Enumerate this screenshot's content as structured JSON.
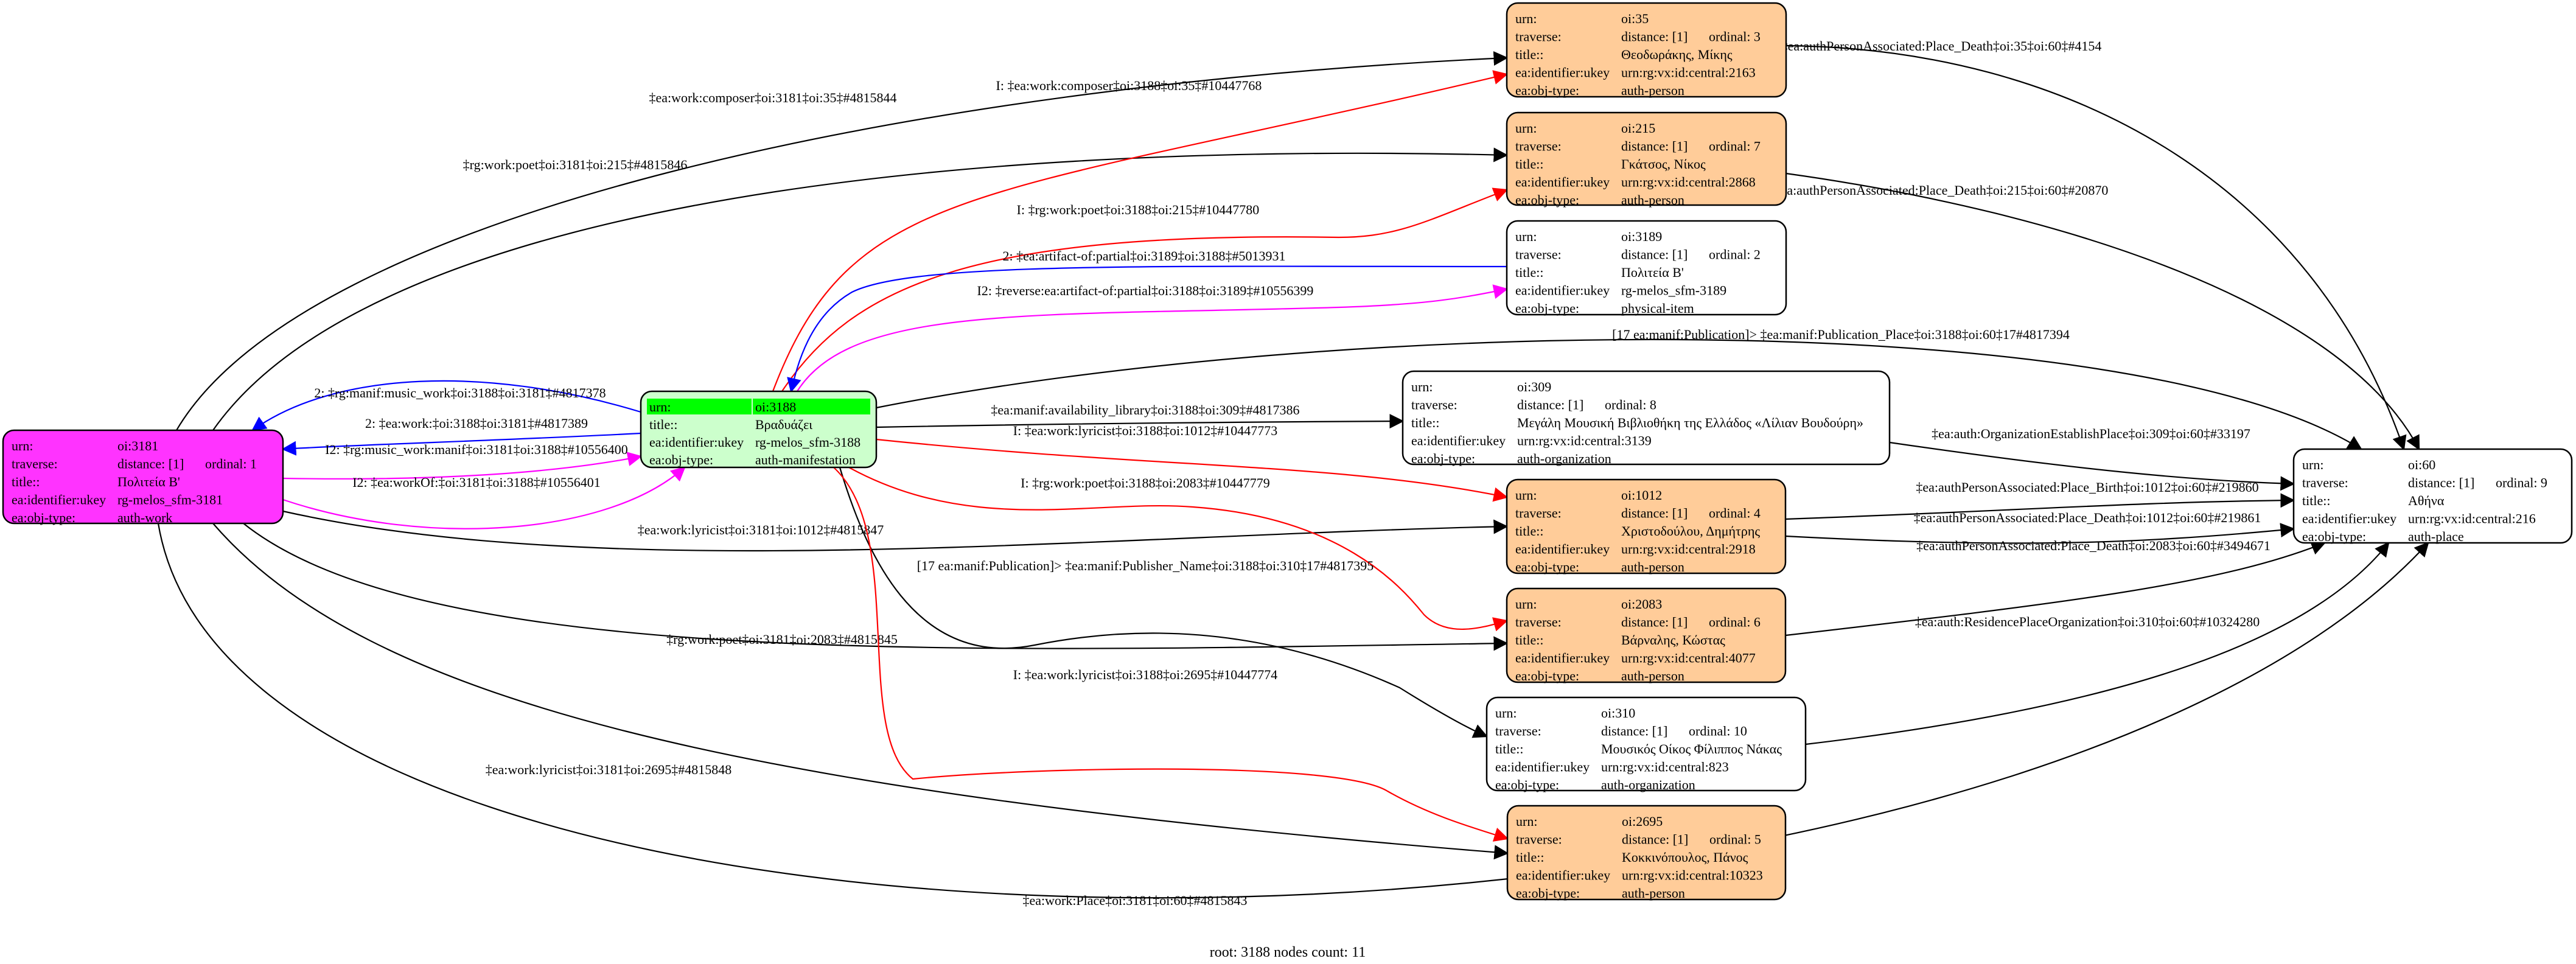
{
  "row_labels": {
    "urn": "urn:",
    "traverse": "traverse:",
    "title": "title::",
    "ukey": "ea:identifier:ukey",
    "obj_type": "ea:obj-type:"
  },
  "colors": {
    "work": "#ff33ff",
    "root": "#ccffcc",
    "root_header": "#00ff00",
    "person": "#ffcc99",
    "plain": "#ffffff",
    "red": "#ff0000",
    "blue": "#0000ff",
    "magenta": "#ff00ff",
    "black": "#000000"
  },
  "nodes": [
    {
      "id": "3181",
      "style": "work",
      "urn": "oi:3181",
      "distance": "distance: [1]",
      "ordinal": "ordinal: 1",
      "title": "Πολιτεία Β'",
      "ukey": "rg-melos_sfm-3181",
      "obj_type": "auth-work"
    },
    {
      "id": "3188",
      "style": "root",
      "urn": "oi:3188",
      "title": "Βραδυάζει",
      "ukey": "rg-melos_sfm-3188",
      "obj_type": "auth-manifestation"
    },
    {
      "id": "35",
      "style": "person",
      "urn": "oi:35",
      "distance": "distance: [1]",
      "ordinal": "ordinal: 3",
      "title": "Θεοδωράκης, Μίκης",
      "ukey": "urn:rg:vx:id:central:2163",
      "obj_type": "auth-person"
    },
    {
      "id": "215",
      "style": "person",
      "urn": "oi:215",
      "distance": "distance: [1]",
      "ordinal": "ordinal: 7",
      "title": "Γκάτσος, Νίκος",
      "ukey": "urn:rg:vx:id:central:2868",
      "obj_type": "auth-person"
    },
    {
      "id": "3189",
      "style": "plain",
      "urn": "oi:3189",
      "distance": "distance: [1]",
      "ordinal": "ordinal: 2",
      "title": "Πολιτεία Β'",
      "ukey": "rg-melos_sfm-3189",
      "obj_type": "physical-item"
    },
    {
      "id": "309",
      "style": "plain",
      "urn": "oi:309",
      "distance": "distance: [1]",
      "ordinal": "ordinal: 8",
      "title": "Μεγάλη Μουσική Βιβλιοθήκη της Ελλάδος «Λίλιαν Βουδούρη»",
      "ukey": "urn:rg:vx:id:central:3139",
      "obj_type": "auth-organization"
    },
    {
      "id": "1012",
      "style": "person",
      "urn": "oi:1012",
      "distance": "distance: [1]",
      "ordinal": "ordinal: 4",
      "title": "Χριστοδούλου, Δημήτρης",
      "ukey": "urn:rg:vx:id:central:2918",
      "obj_type": "auth-person"
    },
    {
      "id": "2083",
      "style": "person",
      "urn": "oi:2083",
      "distance": "distance: [1]",
      "ordinal": "ordinal: 6",
      "title": "Βάρναλης, Κώστας",
      "ukey": "urn:rg:vx:id:central:4077",
      "obj_type": "auth-person"
    },
    {
      "id": "310",
      "style": "plain",
      "urn": "oi:310",
      "distance": "distance: [1]",
      "ordinal": "ordinal: 10",
      "title": "Μουσικός Οίκος Φίλιππος Νάκας",
      "ukey": "urn:rg:vx:id:central:823",
      "obj_type": "auth-organization"
    },
    {
      "id": "2695",
      "style": "person",
      "urn": "oi:2695",
      "distance": "distance: [1]",
      "ordinal": "ordinal: 5",
      "title": "Κοκκινόπουλος, Πάνος",
      "ukey": "urn:rg:vx:id:central:10323",
      "obj_type": "auth-person"
    },
    {
      "id": "60",
      "style": "plain",
      "urn": "oi:60",
      "distance": "distance: [1]",
      "ordinal": "ordinal: 9",
      "title": "Αθήνα",
      "ukey": "urn:rg:vx:id:central:216",
      "obj_type": "auth-place"
    }
  ],
  "edges": [
    {
      "from": "3181",
      "to": "35",
      "color": "black",
      "label": "‡ea:work:composer‡oi:3181‡oi:35‡#4815844"
    },
    {
      "from": "3181",
      "to": "215",
      "color": "black",
      "label": "‡rg:work:poet‡oi:3181‡oi:215‡#4815846"
    },
    {
      "from": "3188",
      "to": "3181",
      "color": "blue",
      "label": "2: ‡rg:manif:music_work‡oi:3188‡oi:3181‡#4817378"
    },
    {
      "from": "3188",
      "to": "3181",
      "color": "blue",
      "label": "2: ‡ea:work:‡oi:3188‡oi:3181‡#4817389"
    },
    {
      "from": "3181",
      "to": "3188",
      "color": "magenta",
      "label": "I2: ‡rg:music_work:manif‡oi:3181‡oi:3188‡#10556400"
    },
    {
      "from": "3181",
      "to": "3188",
      "color": "magenta",
      "label": "I2: ‡ea:workOf:‡oi:3181‡oi:3188‡#10556401"
    },
    {
      "from": "3181",
      "to": "1012",
      "color": "black",
      "label": "‡ea:work:lyricist‡oi:3181‡oi:1012‡#4815847"
    },
    {
      "from": "3181",
      "to": "2083",
      "color": "black",
      "label": "‡rg:work:poet‡oi:3181‡oi:2083‡#4815845"
    },
    {
      "from": "3181",
      "to": "2695",
      "color": "black",
      "label": "‡ea:work:lyricist‡oi:3181‡oi:2695‡#4815848"
    },
    {
      "from": "3181",
      "to": "60",
      "color": "black",
      "label": "‡ea:work:Place‡oi:3181‡oi:60‡#4815843"
    },
    {
      "from": "3188",
      "to": "35",
      "color": "red",
      "label": "I: ‡ea:work:composer‡oi:3188‡oi:35‡#10447768"
    },
    {
      "from": "3188",
      "to": "215",
      "color": "red",
      "label": "I: ‡rg:work:poet‡oi:3188‡oi:215‡#10447780"
    },
    {
      "from": "3189",
      "to": "3188",
      "color": "blue",
      "label": "2: ‡ea:artifact-of:partial‡oi:3189‡oi:3188‡#5013931"
    },
    {
      "from": "3188",
      "to": "3189",
      "color": "magenta",
      "label": "I2: ‡reverse:ea:artifact-of:partial‡oi:3188‡oi:3189‡#10556399"
    },
    {
      "from": "3188",
      "to": "60",
      "color": "black",
      "label": "[17 ea:manif:Publication]> ‡ea:manif:Publication_Place‡oi:3188‡oi:60‡17#4817394"
    },
    {
      "from": "3188",
      "to": "309",
      "color": "black",
      "label": "‡ea:manif:availability_library‡oi:3188‡oi:309‡#4817386"
    },
    {
      "from": "3188",
      "to": "1012",
      "color": "red",
      "label": "I: ‡ea:work:lyricist‡oi:3188‡oi:1012‡#10447773"
    },
    {
      "from": "3188",
      "to": "2083",
      "color": "red",
      "label": "I: ‡rg:work:poet‡oi:3188‡oi:2083‡#10447779"
    },
    {
      "from": "3188",
      "to": "310",
      "color": "black",
      "label": "[17 ea:manif:Publication]> ‡ea:manif:Publisher_Name‡oi:3188‡oi:310‡17#4817395"
    },
    {
      "from": "3188",
      "to": "2695",
      "color": "red",
      "label": "I: ‡ea:work:lyricist‡oi:3188‡oi:2695‡#10447774"
    },
    {
      "from": "35",
      "to": "60",
      "color": "black",
      "label": "‡ea:authPersonAssociated:Place_Death‡oi:35‡oi:60‡#4154"
    },
    {
      "from": "215",
      "to": "60",
      "color": "black",
      "label": "‡ea:authPersonAssociated:Place_Death‡oi:215‡oi:60‡#20870"
    },
    {
      "from": "309",
      "to": "60",
      "color": "black",
      "label": "‡ea:auth:OrganizationEstablishPlace‡oi:309‡oi:60‡#33197"
    },
    {
      "from": "1012",
      "to": "60",
      "color": "black",
      "label": "‡ea:authPersonAssociated:Place_Birth‡oi:1012‡oi:60‡#219860"
    },
    {
      "from": "1012",
      "to": "60",
      "color": "black",
      "label": "‡ea:authPersonAssociated:Place_Death‡oi:1012‡oi:60‡#219861"
    },
    {
      "from": "2083",
      "to": "60",
      "color": "black",
      "label": "‡ea:authPersonAssociated:Place_Death‡oi:2083‡oi:60‡#3494671"
    },
    {
      "from": "310",
      "to": "60",
      "color": "black",
      "label": "‡ea:auth:ResidencePlaceOrganization‡oi:310‡oi:60‡#10324280"
    }
  ],
  "footer": "root: 3188 nodes count: 11"
}
